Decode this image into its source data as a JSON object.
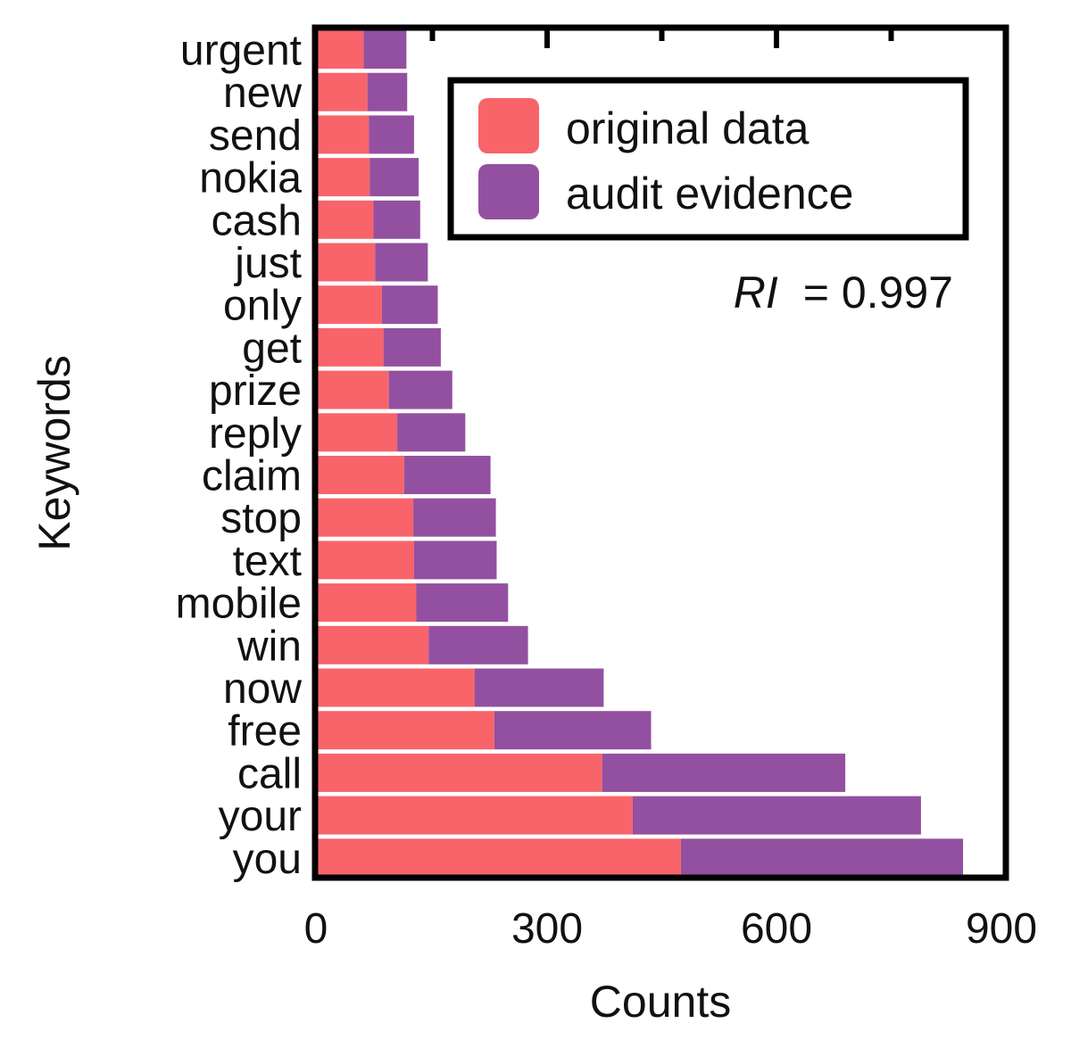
{
  "chart_data": {
    "type": "bar",
    "orientation": "horizontal",
    "stacked": true,
    "categories": [
      "urgent",
      "new",
      "send",
      "nokia",
      "cash",
      "just",
      "only",
      "get",
      "prize",
      "reply",
      "claim",
      "stop",
      "text",
      "mobile",
      "win",
      "now",
      "free",
      "call",
      "your",
      "you"
    ],
    "series": [
      {
        "name": "original data",
        "color": "#f8646a",
        "values": [
          60,
          65,
          67,
          68,
          73,
          75,
          84,
          86,
          93,
          104,
          113,
          125,
          126,
          129,
          145,
          205,
          231,
          372,
          412,
          475
        ]
      },
      {
        "name": "audit evidence",
        "color": "#9350a1",
        "values": [
          56,
          52,
          59,
          64,
          61,
          69,
          73,
          75,
          83,
          89,
          113,
          108,
          108,
          120,
          130,
          169,
          205,
          318,
          377,
          369
        ]
      }
    ],
    "xlabel": "Counts",
    "ylabel": "Keywords",
    "xlim": [
      0,
      900
    ],
    "xticks": [
      0,
      300,
      600,
      900
    ],
    "legend_placement": "top-right",
    "annotation": {
      "italic": "RI",
      "text": "= 0.997"
    },
    "grid": false
  }
}
